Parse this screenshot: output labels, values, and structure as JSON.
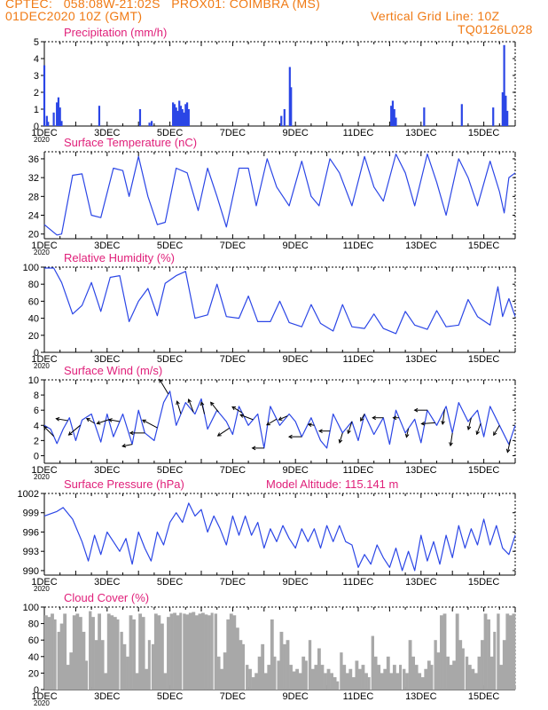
{
  "header": {
    "left_line1": "CPTEC:   058:08W-21:02S   PROX01: COIMBRA (MS)",
    "left_line2": "01DEC2020 10Z (GMT)",
    "right_line2": "Vertical Grid Line: 10Z",
    "right_line3": "TQ0126L028"
  },
  "colors": {
    "header": "#f07a14",
    "title": "#e0207a",
    "series": "#2b46e6",
    "cloud": "#a8a8a8",
    "axis": "#000000"
  },
  "x_axis": {
    "start_day": 1,
    "end_day": 16.0,
    "tick_labels": [
      "1DEC",
      "3DEC",
      "5DEC",
      "7DEC",
      "9DEC",
      "11DEC",
      "13DEC",
      "15DEC"
    ],
    "tick_days": [
      1,
      3,
      5,
      7,
      9,
      11,
      13,
      15
    ],
    "sub_label": "2020"
  },
  "chart_data": [
    {
      "id": "precip",
      "type": "bar",
      "title": "Precipitation (mm/h)",
      "ylim": [
        0,
        5
      ],
      "yticks": [
        0,
        1,
        2,
        3,
        4,
        5
      ],
      "x": [
        1.0,
        1.08,
        1.12,
        1.3,
        1.4,
        1.45,
        1.5,
        1.55,
        2.75,
        4.05,
        4.35,
        4.42,
        5.1,
        5.15,
        5.2,
        5.25,
        5.3,
        5.35,
        5.4,
        5.45,
        5.5,
        5.55,
        5.6,
        8.55,
        8.65,
        8.82,
        8.86,
        12.05,
        12.1,
        12.15,
        12.2,
        13.1,
        14.3,
        15.3,
        15.6,
        15.65,
        15.7,
        15.75
      ],
      "values": [
        3.6,
        0.6,
        0.25,
        0.8,
        1.4,
        1.7,
        1.1,
        0.3,
        1.2,
        1.0,
        0.2,
        0.3,
        1.4,
        1.3,
        1.1,
        0.9,
        1.5,
        1.2,
        1.0,
        0.8,
        1.3,
        1.4,
        1.0,
        0.6,
        1.0,
        3.5,
        2.3,
        1.2,
        1.5,
        1.0,
        0.5,
        1.1,
        1.3,
        1.1,
        2.0,
        4.8,
        1.8,
        0.9
      ]
    },
    {
      "id": "temp",
      "type": "line",
      "title": "Surface Temperature (nC)",
      "ylim": [
        19,
        37.5
      ],
      "yticks": [
        20,
        24,
        28,
        32,
        36
      ],
      "x": [
        1.0,
        1.4,
        1.55,
        1.9,
        2.2,
        2.5,
        2.8,
        3.2,
        3.5,
        3.7,
        4.0,
        4.3,
        4.6,
        4.85,
        5.2,
        5.55,
        5.9,
        6.2,
        6.5,
        6.8,
        7.2,
        7.5,
        7.75,
        8.1,
        8.4,
        8.8,
        9.2,
        9.5,
        9.75,
        10.1,
        10.4,
        10.8,
        11.2,
        11.5,
        11.8,
        12.2,
        12.5,
        12.8,
        13.2,
        13.5,
        13.8,
        14.2,
        14.5,
        14.8,
        15.2,
        15.5,
        15.65,
        15.8,
        16.0
      ],
      "values": [
        22,
        19.8,
        20,
        32.5,
        32.8,
        24,
        23.5,
        34,
        33.5,
        28,
        36.5,
        28,
        22,
        22.5,
        34,
        33,
        25,
        34,
        28,
        21.5,
        34,
        34,
        26,
        36,
        30,
        26,
        35.5,
        28,
        26,
        36,
        33,
        26,
        36.5,
        30,
        27,
        37,
        33,
        26,
        37,
        31,
        24,
        36,
        32,
        26,
        35.5,
        29,
        24.5,
        32,
        33
      ]
    },
    {
      "id": "rh",
      "type": "line",
      "title": "Relative Humidity (%)",
      "ylim": [
        0,
        100
      ],
      "yticks": [
        0,
        20,
        40,
        60,
        80,
        100
      ],
      "x": [
        1.0,
        1.3,
        1.55,
        1.9,
        2.2,
        2.5,
        2.8,
        3.1,
        3.4,
        3.7,
        4.0,
        4.3,
        4.6,
        4.85,
        5.2,
        5.5,
        5.8,
        6.2,
        6.5,
        6.8,
        7.2,
        7.5,
        7.8,
        8.2,
        8.5,
        8.8,
        9.2,
        9.5,
        9.8,
        10.2,
        10.5,
        10.8,
        11.2,
        11.5,
        11.8,
        12.2,
        12.5,
        12.8,
        13.2,
        13.5,
        13.8,
        14.2,
        14.5,
        14.8,
        15.2,
        15.45,
        15.6,
        15.8,
        16.0
      ],
      "values": [
        100,
        99,
        82,
        45,
        55,
        82,
        48,
        88,
        90,
        36,
        60,
        75,
        43,
        81,
        90,
        95,
        40,
        44,
        80,
        42,
        40,
        66,
        36,
        36,
        60,
        35,
        30,
        56,
        34,
        25,
        56,
        30,
        28,
        45,
        28,
        22,
        48,
        32,
        27,
        49,
        30,
        32,
        62,
        42,
        32,
        77,
        42,
        63,
        42
      ]
    },
    {
      "id": "wind",
      "type": "line",
      "title": "Surface Wind (m/s)",
      "ylim": [
        -1,
        10
      ],
      "yticks": [
        0,
        2,
        4,
        6,
        8,
        10
      ],
      "x": [
        1.0,
        1.2,
        1.4,
        1.6,
        1.8,
        2.0,
        2.2,
        2.5,
        2.8,
        3.0,
        3.2,
        3.5,
        3.8,
        4.0,
        4.2,
        4.5,
        4.8,
        5.0,
        5.2,
        5.5,
        5.8,
        6.0,
        6.2,
        6.5,
        6.8,
        7.0,
        7.2,
        7.5,
        7.8,
        8.0,
        8.2,
        8.5,
        8.8,
        9.0,
        9.2,
        9.5,
        9.8,
        10.0,
        10.2,
        10.5,
        10.8,
        11.0,
        11.2,
        11.5,
        11.8,
        12.0,
        12.2,
        12.5,
        12.8,
        13.0,
        13.2,
        13.5,
        13.8,
        14.0,
        14.2,
        14.5,
        14.8,
        15.0,
        15.2,
        15.5,
        15.8,
        16.0
      ],
      "values": [
        4,
        3.5,
        1.6,
        3.5,
        5,
        2,
        4.7,
        5.5,
        1.8,
        5.5,
        2.5,
        5.5,
        1.5,
        6,
        3,
        2,
        7,
        8.5,
        4,
        7,
        5.5,
        7.5,
        3.5,
        6,
        4.5,
        2.8,
        6.5,
        4,
        5.5,
        1,
        6.5,
        4,
        5.5,
        4.5,
        2.5,
        5,
        2,
        1,
        5.5,
        3,
        4.5,
        2,
        5.5,
        2.8,
        5,
        1.5,
        6,
        3,
        4.8,
        1.7,
        6,
        4,
        6.5,
        3,
        7,
        4.5,
        6,
        2.5,
        6.5,
        4,
        1.5,
        4
      ]
    },
    {
      "id": "press",
      "type": "line",
      "title": "Surface Pressure (hPa)",
      "extra_label": "Model Altitude: 115.141 m",
      "ylim": [
        989.3,
        1002
      ],
      "yticks": [
        990,
        993,
        996,
        999,
        1002
      ],
      "x": [
        1.0,
        1.4,
        1.6,
        1.9,
        2.2,
        2.4,
        2.6,
        2.8,
        3.0,
        3.2,
        3.4,
        3.6,
        3.8,
        4.0,
        4.2,
        4.4,
        4.6,
        4.8,
        5.0,
        5.2,
        5.4,
        5.6,
        5.8,
        6.0,
        6.2,
        6.4,
        6.6,
        6.8,
        7.0,
        7.2,
        7.4,
        7.6,
        7.8,
        8.0,
        8.2,
        8.4,
        8.6,
        8.8,
        9.0,
        9.2,
        9.4,
        9.6,
        9.8,
        10.0,
        10.2,
        10.4,
        10.6,
        10.8,
        11.0,
        11.2,
        11.4,
        11.6,
        11.8,
        12.0,
        12.2,
        12.4,
        12.6,
        12.8,
        13.0,
        13.2,
        13.4,
        13.6,
        13.8,
        14.0,
        14.2,
        14.4,
        14.6,
        14.8,
        15.0,
        15.2,
        15.4,
        15.6,
        15.8,
        16.0
      ],
      "values": [
        998.5,
        999.2,
        999.8,
        998,
        994.5,
        991.5,
        995.5,
        992.5,
        996,
        994.5,
        993,
        995,
        991,
        996,
        993.5,
        991.5,
        996,
        994,
        997.5,
        999,
        997.5,
        1000.5,
        998.5,
        999.5,
        996,
        998.5,
        996.5,
        994,
        998.5,
        995.5,
        998.5,
        995.5,
        997.5,
        993.5,
        996.5,
        994.5,
        997,
        995,
        993.5,
        996.5,
        994.5,
        996.5,
        993.5,
        997,
        994.5,
        997,
        994.5,
        994,
        990.5,
        992.5,
        991,
        994,
        992,
        990.5,
        993.5,
        990,
        993,
        990,
        995.5,
        991.5,
        994.5,
        991,
        995.5,
        992,
        997,
        993.5,
        996.5,
        994,
        998,
        994,
        997,
        993.5,
        992.5,
        995.5
      ]
    },
    {
      "id": "cloud",
      "type": "area",
      "title": "Cloud Cover (%)",
      "ylim": [
        0,
        100
      ],
      "yticks": [
        0,
        20,
        40,
        60,
        80,
        100
      ],
      "x": [
        1.0,
        1.1,
        1.2,
        1.3,
        1.4,
        1.5,
        1.6,
        1.7,
        1.8,
        1.9,
        2.0,
        2.1,
        2.2,
        2.3,
        2.4,
        2.5,
        2.6,
        2.7,
        2.8,
        2.9,
        3.0,
        3.1,
        3.2,
        3.3,
        3.4,
        3.5,
        3.6,
        3.7,
        3.8,
        3.9,
        4.0,
        4.1,
        4.2,
        4.3,
        4.4,
        4.5,
        4.6,
        4.7,
        4.8,
        4.9,
        5.0,
        5.1,
        5.2,
        5.3,
        5.4,
        5.5,
        5.6,
        5.7,
        5.8,
        5.9,
        6.0,
        6.1,
        6.2,
        6.3,
        6.4,
        6.5,
        6.6,
        6.7,
        6.8,
        6.9,
        7.0,
        7.1,
        7.2,
        7.3,
        7.4,
        7.5,
        7.6,
        7.7,
        7.8,
        7.9,
        8.0,
        8.1,
        8.2,
        8.3,
        8.4,
        8.5,
        8.6,
        8.7,
        8.8,
        8.9,
        9.0,
        9.1,
        9.2,
        9.3,
        9.4,
        9.5,
        9.6,
        9.7,
        9.8,
        9.9,
        10.0,
        10.1,
        10.2,
        10.3,
        10.4,
        10.5,
        10.6,
        10.7,
        10.8,
        10.9,
        11.0,
        11.1,
        11.2,
        11.3,
        11.4,
        11.5,
        11.6,
        11.7,
        11.8,
        11.9,
        12.0,
        12.1,
        12.2,
        12.3,
        12.4,
        12.5,
        12.6,
        12.7,
        12.8,
        12.9,
        13.0,
        13.1,
        13.2,
        13.3,
        13.4,
        13.5,
        13.6,
        13.7,
        13.8,
        13.9,
        14.0,
        14.1,
        14.2,
        14.3,
        14.4,
        14.5,
        14.6,
        14.7,
        14.8,
        14.9,
        15.0,
        15.1,
        15.2,
        15.3,
        15.4,
        15.5,
        15.6,
        15.7,
        15.8,
        15.9
      ],
      "values": [
        90,
        88,
        92,
        85,
        70,
        80,
        92,
        30,
        45,
        90,
        92,
        88,
        70,
        35,
        95,
        88,
        60,
        92,
        60,
        20,
        92,
        90,
        88,
        85,
        70,
        55,
        40,
        90,
        85,
        20,
        92,
        88,
        25,
        60,
        55,
        92,
        90,
        80,
        20,
        88,
        92,
        93,
        90,
        93,
        92,
        91,
        93,
        94,
        90,
        92,
        93,
        91,
        90,
        93,
        92,
        40,
        25,
        45,
        85,
        92,
        90,
        75,
        60,
        55,
        30,
        25,
        15,
        20,
        40,
        55,
        20,
        30,
        85,
        40,
        35,
        70,
        55,
        60,
        30,
        22,
        25,
        20,
        40,
        35,
        60,
        25,
        30,
        50,
        30,
        20,
        25,
        20,
        15,
        10,
        45,
        30,
        20,
        25,
        15,
        35,
        25,
        30,
        20,
        15,
        65,
        40,
        30,
        20,
        25,
        40,
        20,
        30,
        20,
        30,
        25,
        20,
        60,
        40,
        30,
        20,
        15,
        25,
        35,
        30,
        60,
        45,
        90,
        92,
        40,
        30,
        35,
        92,
        60,
        50,
        40,
        30,
        25,
        20,
        40,
        60,
        92,
        85,
        40,
        70,
        92,
        30,
        60,
        92,
        90,
        92
      ]
    }
  ],
  "wind_vectors": [
    {
      "day": 1.3,
      "u": -1,
      "v": 1
    },
    {
      "day": 1.75,
      "u": -1.2,
      "v": 0.2
    },
    {
      "day": 2.15,
      "u": -1.2,
      "v": -1
    },
    {
      "day": 2.6,
      "u": -0.8,
      "v": 0.5
    },
    {
      "day": 3.05,
      "u": -1.2,
      "v": -0.4
    },
    {
      "day": 3.4,
      "u": -1.1,
      "v": 0.2
    },
    {
      "day": 3.8,
      "u": -1,
      "v": -0.2
    },
    {
      "day": 4.2,
      "u": -1.5,
      "v": 0
    },
    {
      "day": 4.6,
      "u": -1.5,
      "v": 0.8
    },
    {
      "day": 4.95,
      "u": -0.9,
      "v": 1.5
    },
    {
      "day": 5.35,
      "u": -0.4,
      "v": 1.3
    },
    {
      "day": 5.75,
      "u": -0.5,
      "v": 1.3
    },
    {
      "day": 6.1,
      "u": -0.3,
      "v": 1.2
    },
    {
      "day": 6.55,
      "u": -0.8,
      "v": 1
    },
    {
      "day": 6.9,
      "u": -1.2,
      "v": -0.8
    },
    {
      "day": 7.3,
      "u": -1,
      "v": 0.6
    },
    {
      "day": 7.65,
      "u": -1.3,
      "v": 0.5
    },
    {
      "day": 8.0,
      "u": -1.2,
      "v": 0
    },
    {
      "day": 8.4,
      "u": -1,
      "v": -0.6
    },
    {
      "day": 8.75,
      "u": -0.9,
      "v": -0.4
    },
    {
      "day": 9.2,
      "u": -1.3,
      "v": 0
    },
    {
      "day": 9.6,
      "u": -0.6,
      "v": 0.1
    },
    {
      "day": 10.1,
      "u": -1.1,
      "v": 0
    },
    {
      "day": 10.5,
      "u": -0.3,
      "v": -1
    },
    {
      "day": 10.8,
      "u": -0.4,
      "v": -1.2
    },
    {
      "day": 11.2,
      "u": -0.4,
      "v": -0.7
    },
    {
      "day": 11.8,
      "u": -1.1,
      "v": 0
    },
    {
      "day": 12.3,
      "u": -0.6,
      "v": 0
    },
    {
      "day": 12.6,
      "u": -0.2,
      "v": -0.9
    },
    {
      "day": 13.2,
      "u": -1.3,
      "v": 0
    },
    {
      "day": 13.45,
      "u": -1.4,
      "v": -0.1
    },
    {
      "day": 13.75,
      "u": -0.2,
      "v": -1.5
    },
    {
      "day": 14.0,
      "u": -0.2,
      "v": -1.3
    },
    {
      "day": 14.6,
      "u": -0.3,
      "v": -1.2
    },
    {
      "day": 14.9,
      "u": -0.4,
      "v": -1.1
    },
    {
      "day": 15.5,
      "u": -0.6,
      "v": -1
    },
    {
      "day": 15.85,
      "u": -0.3,
      "v": -1.3
    }
  ]
}
